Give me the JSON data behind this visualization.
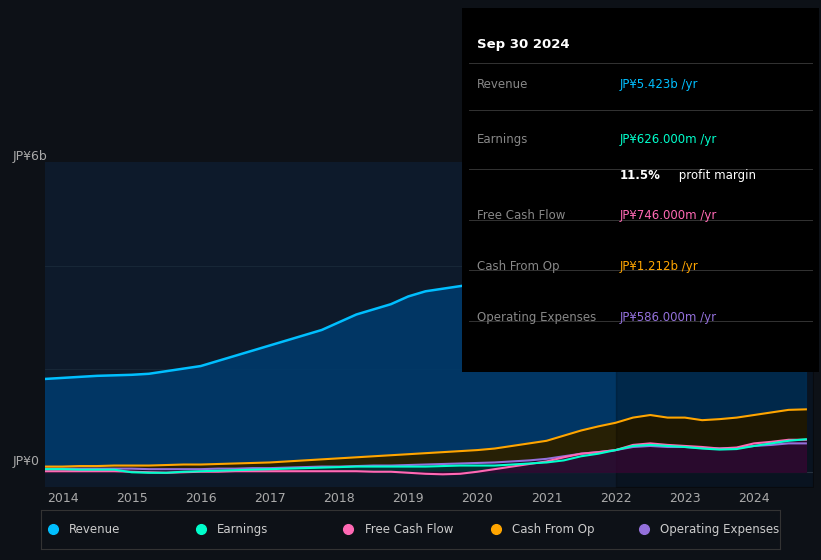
{
  "bg_color": "#0d1117",
  "chart_bg": "#0d1a2b",
  "ylabel_top": "JP¥6b",
  "ylabel_bottom": "JP¥0",
  "revenue_color": "#00bfff",
  "earnings_color": "#00ffcc",
  "free_cash_flow_color": "#ff69b4",
  "cash_from_op_color": "#ffa500",
  "operating_expenses_color": "#9370db",
  "legend_items": [
    {
      "label": "Revenue",
      "color": "#00bfff"
    },
    {
      "label": "Earnings",
      "color": "#00ffcc"
    },
    {
      "label": "Free Cash Flow",
      "color": "#ff69b4"
    },
    {
      "label": "Cash From Op",
      "color": "#ffa500"
    },
    {
      "label": "Operating Expenses",
      "color": "#9370db"
    }
  ]
}
